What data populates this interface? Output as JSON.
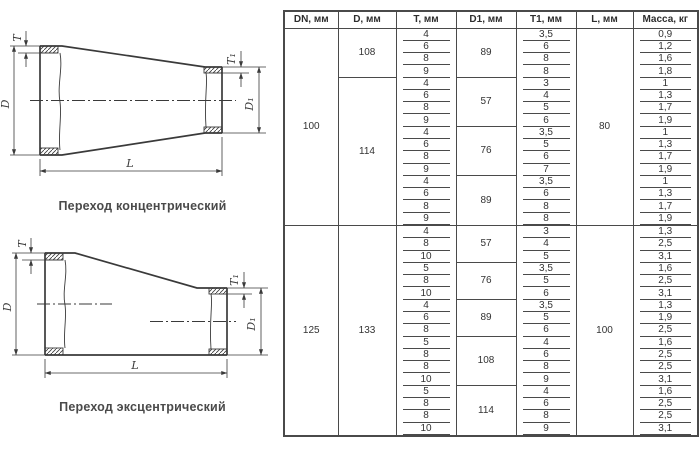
{
  "diagrams": {
    "concentric": {
      "caption": "Переход концентрический",
      "dims": {
        "d": "D",
        "d1": "D₁",
        "t": "T",
        "t1": "T₁",
        "l": "L"
      }
    },
    "eccentric": {
      "caption": "Переход эксцентрический",
      "dims": {
        "d": "D",
        "d1": "D₁",
        "t": "T",
        "t1": "T₁",
        "l": "L"
      }
    }
  },
  "table": {
    "headers": [
      "DN, мм",
      "D, мм",
      "T, мм",
      "D1, мм",
      "T1, мм",
      "L, мм",
      "Масса, кг"
    ],
    "sections": [
      {
        "dn": "100",
        "l": "80",
        "d_groups": [
          {
            "d": "108",
            "d1_groups": [
              {
                "d1": "89",
                "rows": [
                  [
                    "4",
                    "3,5",
                    "0,9"
                  ],
                  [
                    "6",
                    "6",
                    "1,2"
                  ],
                  [
                    "8",
                    "8",
                    "1,6"
                  ],
                  [
                    "9",
                    "8",
                    "1,8"
                  ]
                ]
              }
            ]
          },
          {
            "d": "114",
            "d1_groups": [
              {
                "d1": "57",
                "rows": [
                  [
                    "4",
                    "3",
                    "1"
                  ],
                  [
                    "6",
                    "4",
                    "1,3"
                  ],
                  [
                    "8",
                    "5",
                    "1,7"
                  ],
                  [
                    "9",
                    "6",
                    "1,9"
                  ]
                ]
              },
              {
                "d1": "76",
                "rows": [
                  [
                    "4",
                    "3,5",
                    "1"
                  ],
                  [
                    "6",
                    "5",
                    "1,3"
                  ],
                  [
                    "8",
                    "6",
                    "1,7"
                  ],
                  [
                    "9",
                    "7",
                    "1,9"
                  ]
                ]
              },
              {
                "d1": "89",
                "rows": [
                  [
                    "4",
                    "3,5",
                    "1"
                  ],
                  [
                    "6",
                    "6",
                    "1,3"
                  ],
                  [
                    "8",
                    "8",
                    "1,7"
                  ],
                  [
                    "9",
                    "8",
                    "1,9"
                  ]
                ]
              }
            ]
          }
        ]
      },
      {
        "dn": "125",
        "l": "100",
        "d_groups": [
          {
            "d": "133",
            "d1_groups": [
              {
                "d1": "57",
                "rows": [
                  [
                    "4",
                    "3",
                    "1,3"
                  ],
                  [
                    "8",
                    "4",
                    "2,5"
                  ],
                  [
                    "10",
                    "5",
                    "3,1"
                  ]
                ]
              },
              {
                "d1": "76",
                "rows": [
                  [
                    "5",
                    "3,5",
                    "1,6"
                  ],
                  [
                    "8",
                    "5",
                    "2,5"
                  ],
                  [
                    "10",
                    "6",
                    "3,1"
                  ]
                ]
              },
              {
                "d1": "89",
                "rows": [
                  [
                    "4",
                    "3,5",
                    "1,3"
                  ],
                  [
                    "6",
                    "5",
                    "1,9"
                  ],
                  [
                    "8",
                    "6",
                    "2,5"
                  ]
                ]
              },
              {
                "d1": "108",
                "rows": [
                  [
                    "5",
                    "4",
                    "1,6"
                  ],
                  [
                    "8",
                    "6",
                    "2,5"
                  ],
                  [
                    "8",
                    "8",
                    "2,5"
                  ],
                  [
                    "10",
                    "9",
                    "3,1"
                  ]
                ]
              },
              {
                "d1": "114",
                "rows": [
                  [
                    "5",
                    "4",
                    "1,6"
                  ],
                  [
                    "8",
                    "6",
                    "2,5"
                  ],
                  [
                    "8",
                    "8",
                    "2,5"
                  ],
                  [
                    "10",
                    "9",
                    "3,1"
                  ]
                ]
              }
            ]
          }
        ]
      }
    ]
  },
  "colors": {
    "line": "#3a3a3a",
    "table_border": "#4a4a4a",
    "text": "#333333"
  }
}
